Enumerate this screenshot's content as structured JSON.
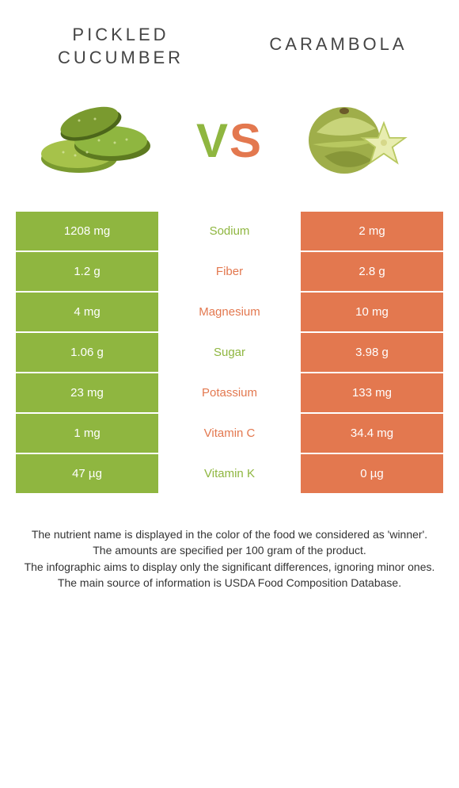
{
  "header": {
    "left_title_line1": "PICKLED",
    "left_title_line2": "CUCUMBER",
    "right_title": "CARAMBOLA"
  },
  "vs": {
    "v": "V",
    "s": "S"
  },
  "colors": {
    "green": "#8fb640",
    "orange": "#e3784f",
    "text": "#333333",
    "background": "#ffffff"
  },
  "table": {
    "rows": [
      {
        "left": "1208 mg",
        "label": "Sodium",
        "right": "2 mg",
        "winner": "green"
      },
      {
        "left": "1.2 g",
        "label": "Fiber",
        "right": "2.8 g",
        "winner": "orange"
      },
      {
        "left": "4 mg",
        "label": "Magnesium",
        "right": "10 mg",
        "winner": "orange"
      },
      {
        "left": "1.06 g",
        "label": "Sugar",
        "right": "3.98 g",
        "winner": "green"
      },
      {
        "left": "23 mg",
        "label": "Potassium",
        "right": "133 mg",
        "winner": "orange"
      },
      {
        "left": "1 mg",
        "label": "Vitamin C",
        "right": "34.4 mg",
        "winner": "orange"
      },
      {
        "left": "47 µg",
        "label": "Vitamin K",
        "right": "0 µg",
        "winner": "green"
      }
    ]
  },
  "footer": {
    "line1": "The nutrient name is displayed in the color of the food we considered as 'winner'.",
    "line2": "The amounts are specified per 100 gram of the product.",
    "line3": "The infographic aims to display only the significant differences, ignoring minor ones.",
    "line4": "The main source of information is USDA Food Composition Database."
  }
}
